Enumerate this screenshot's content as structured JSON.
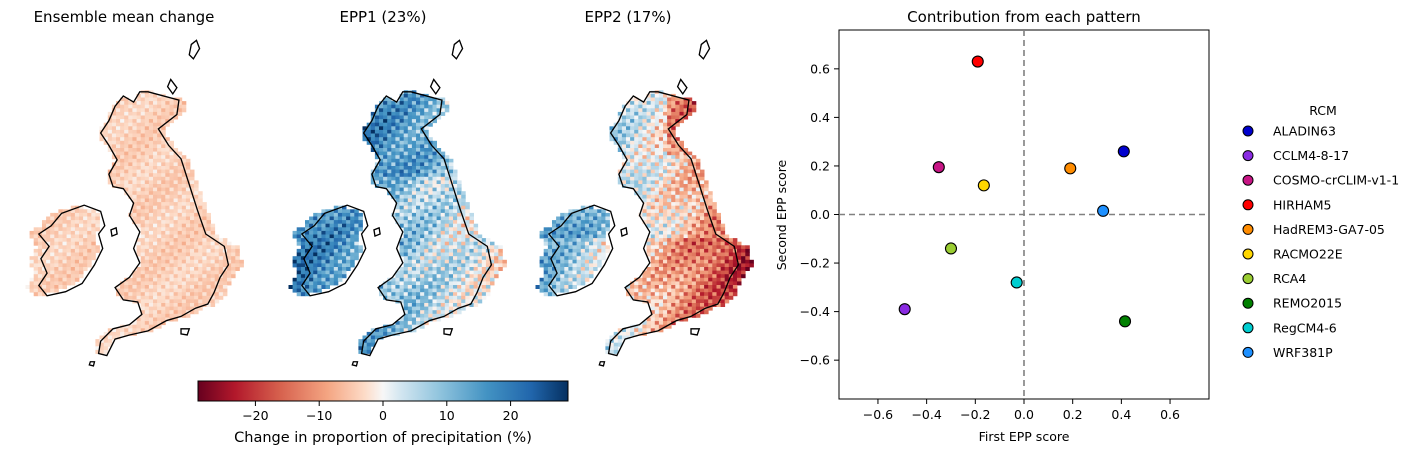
{
  "maps": [
    {
      "title": "Ensemble mean change",
      "shading": "mean"
    },
    {
      "title": "EPP1 (23%)",
      "shading": "epp1"
    },
    {
      "title": "EPP2 (17%)",
      "shading": "epp2"
    }
  ],
  "colorbar": {
    "label": "Change in proportion of precipitation (%)",
    "ticks": [
      "−20",
      "−10",
      "0",
      "10",
      "20"
    ],
    "tick_values": [
      -20,
      -10,
      0,
      10,
      20
    ],
    "range": [
      -29,
      29
    ],
    "colormap": "RdBu"
  },
  "chart_data": {
    "type": "scatter",
    "title": "Contribution from each pattern",
    "xlabel": "First EPP score",
    "ylabel": "Second EPP score",
    "xlim": [
      -0.76,
      0.76
    ],
    "ylim": [
      -0.76,
      0.76
    ],
    "xticks": [
      "−0.6",
      "−0.4",
      "−0.2",
      "0.0",
      "0.2",
      "0.4",
      "0.6"
    ],
    "yticks": [
      "−0.6",
      "−0.4",
      "−0.2",
      "0.0",
      "0.2",
      "0.4",
      "0.6"
    ],
    "tick_values": [
      -0.6,
      -0.4,
      -0.2,
      0.0,
      0.2,
      0.4,
      0.6
    ],
    "reference_lines": {
      "x": 0,
      "y": 0,
      "style": "dashed",
      "color": "#808080"
    },
    "legend": {
      "title": "RCM",
      "placement": "right"
    },
    "series": [
      {
        "name": "ALADIN63",
        "x": 0.41,
        "y": 0.26,
        "color": "#0000cd"
      },
      {
        "name": "CCLM4-8-17",
        "x": -0.49,
        "y": -0.39,
        "color": "#8a2be2"
      },
      {
        "name": "COSMO-crCLIM-v1-1",
        "x": -0.35,
        "y": 0.195,
        "color": "#c71585"
      },
      {
        "name": "HIRHAM5",
        "x": -0.19,
        "y": 0.63,
        "color": "#ff0000"
      },
      {
        "name": "HadREM3-GA7-05",
        "x": 0.19,
        "y": 0.19,
        "color": "#ff8c00"
      },
      {
        "name": "RACMO22E",
        "x": -0.165,
        "y": 0.12,
        "color": "#ffd700"
      },
      {
        "name": "RCA4",
        "x": -0.3,
        "y": -0.14,
        "color": "#9acd32"
      },
      {
        "name": "REMO2015",
        "x": 0.415,
        "y": -0.44,
        "color": "#008000"
      },
      {
        "name": "RegCM4-6",
        "x": -0.03,
        "y": -0.28,
        "color": "#00ced1"
      },
      {
        "name": "WRF381P",
        "x": 0.325,
        "y": 0.015,
        "color": "#1e90ff"
      }
    ]
  }
}
